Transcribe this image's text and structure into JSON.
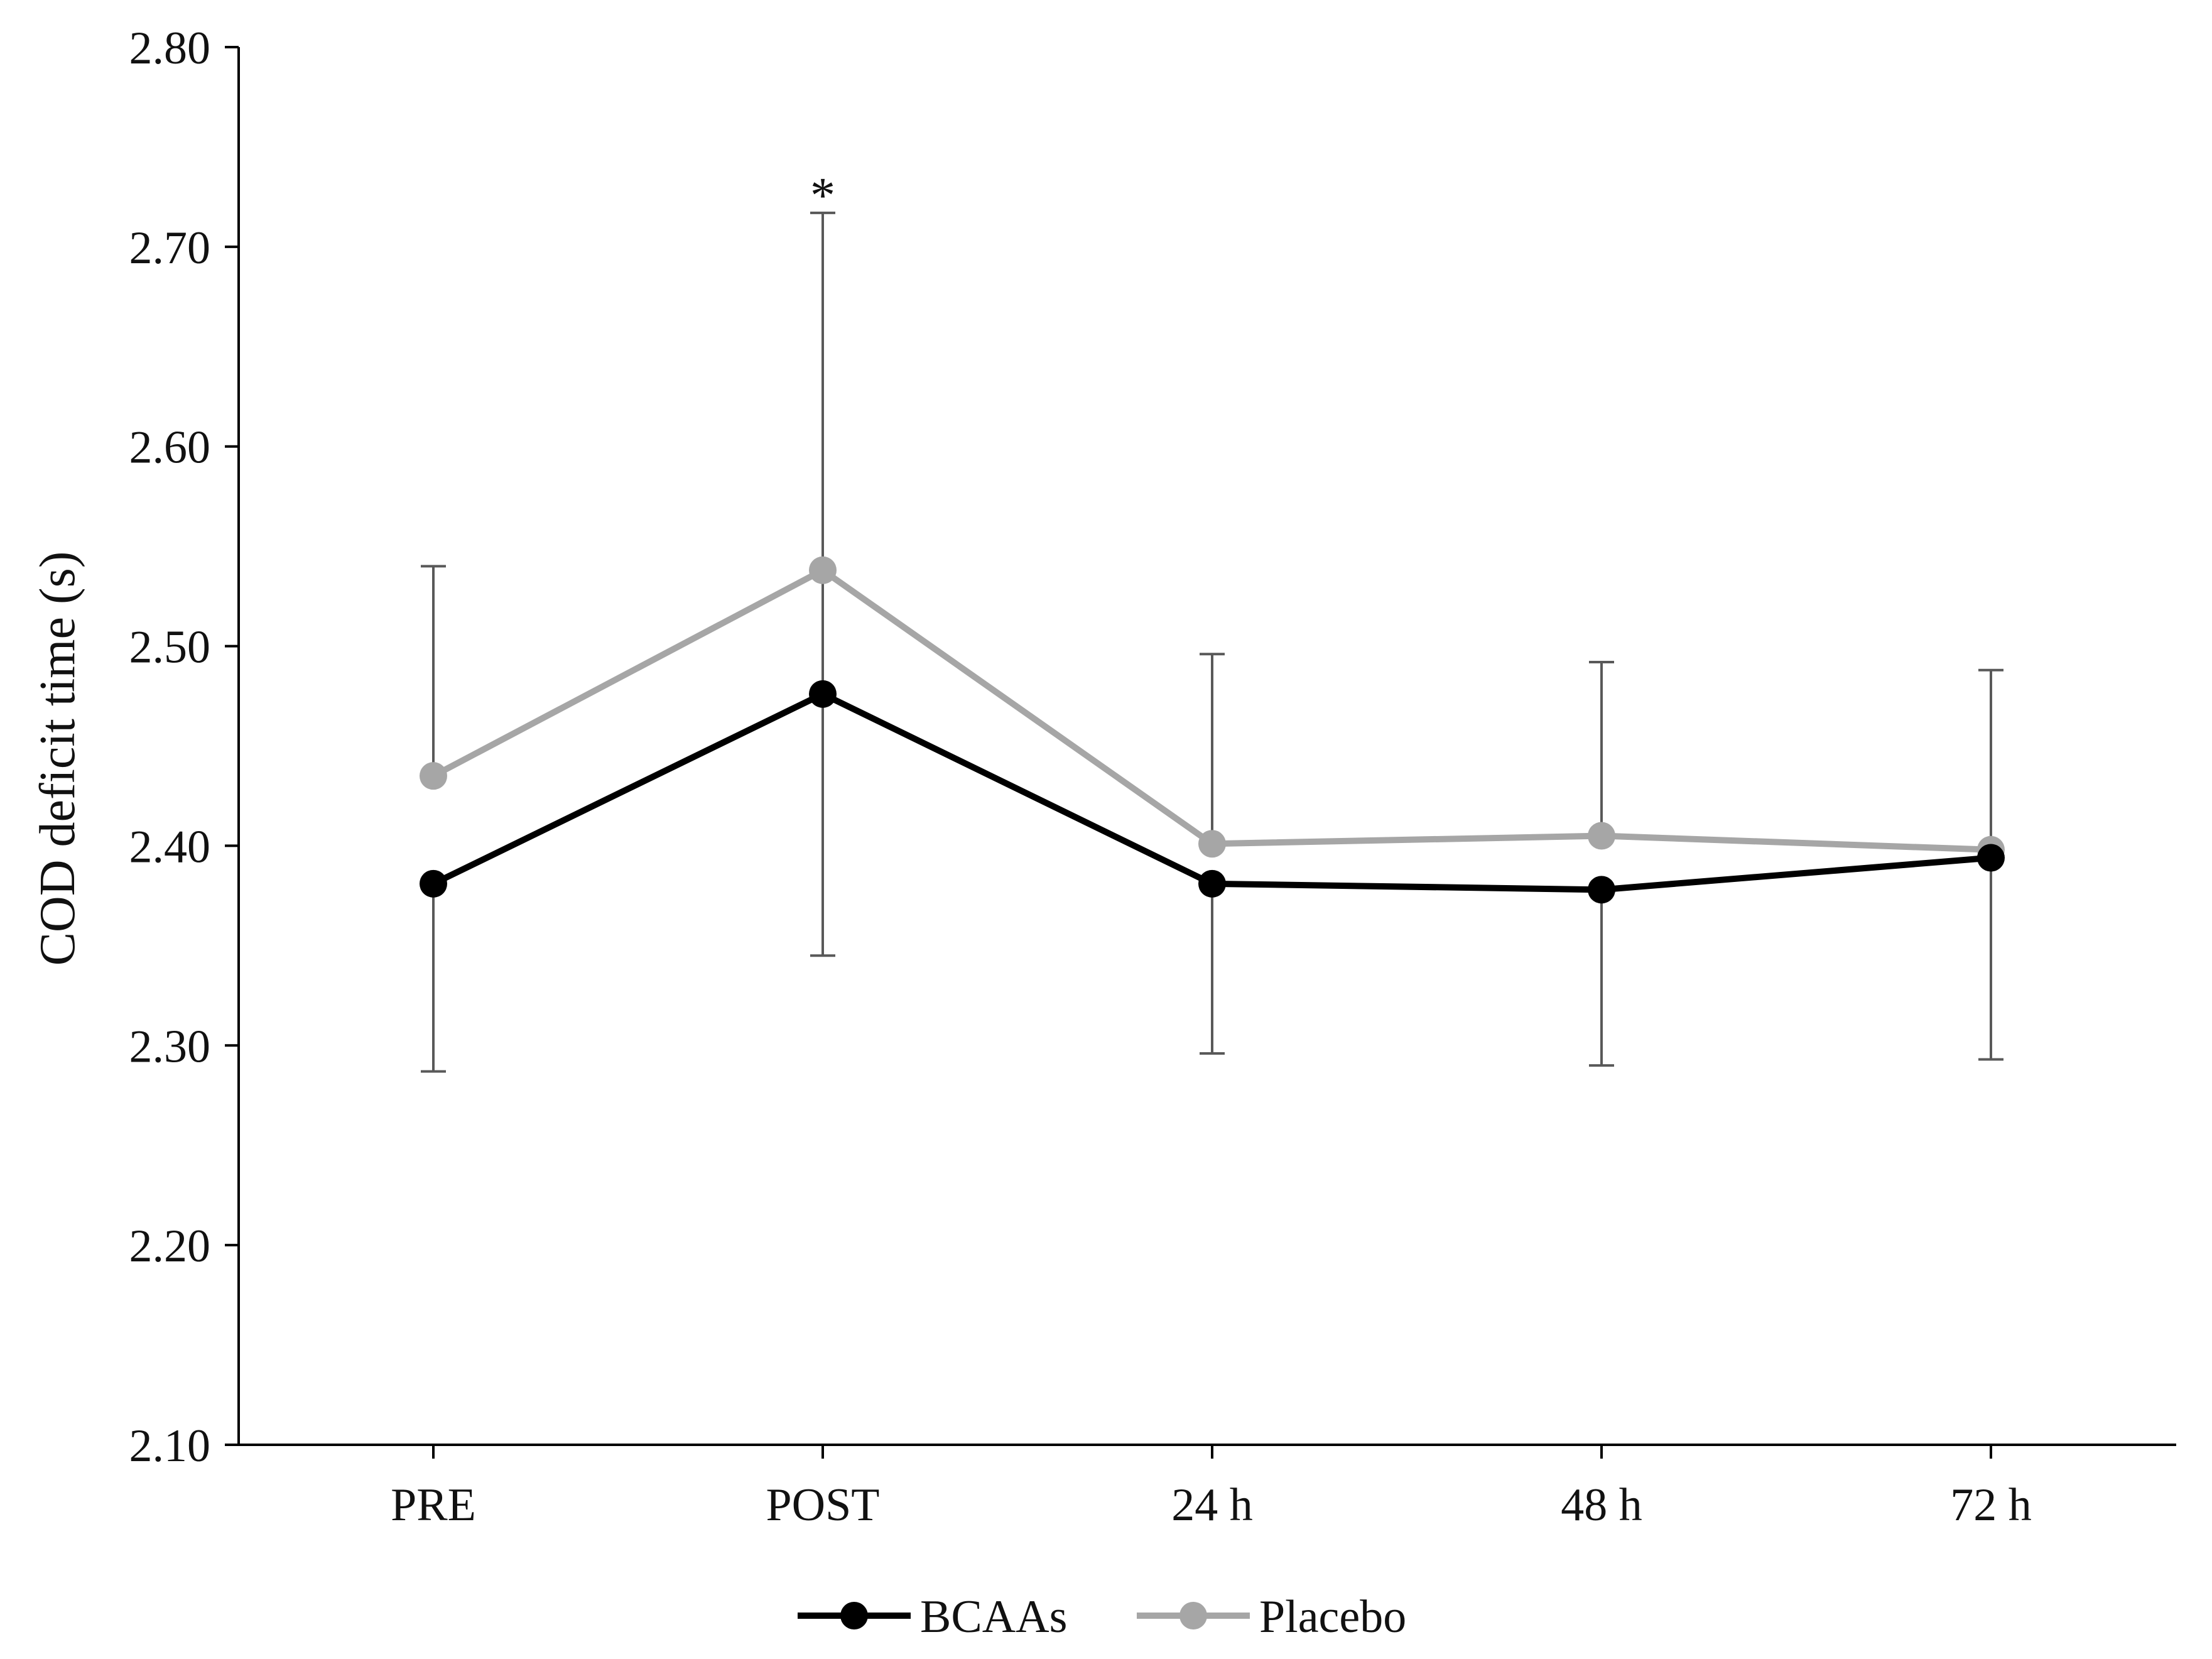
{
  "chart_data": {
    "type": "line",
    "title": "",
    "xlabel": "",
    "ylabel": "COD deficit time (s)",
    "categories": [
      "PRE",
      "POST",
      "24 h",
      "48 h",
      "72 h"
    ],
    "ylim": [
      2.1,
      2.8
    ],
    "yticks": [
      "2.10",
      "2.20",
      "2.30",
      "2.40",
      "2.50",
      "2.60",
      "2.70",
      "2.80"
    ],
    "yticks_values": [
      2.1,
      2.2,
      2.3,
      2.4,
      2.5,
      2.6,
      2.7,
      2.8
    ],
    "grid": false,
    "legend_position": "bottom-center",
    "series": [
      {
        "name": "BCAAs",
        "color": "#000000",
        "values": [
          2.381,
          2.476,
          2.381,
          2.378,
          2.394
        ],
        "error_low": [
          2.287,
          null,
          2.296,
          2.29,
          2.293
        ],
        "error_high": [
          null,
          null,
          null,
          null,
          null
        ]
      },
      {
        "name": "Placebo",
        "color": "#a6a6a6",
        "values": [
          2.435,
          2.538,
          2.401,
          2.405,
          2.398
        ],
        "error_low": [
          null,
          2.345,
          null,
          null,
          null
        ],
        "error_high": [
          2.54,
          2.717,
          2.496,
          2.492,
          2.488
        ]
      }
    ],
    "error_bar_color": "#595959",
    "annotations": [
      {
        "text": "*",
        "category": "POST",
        "y": 2.73
      }
    ]
  }
}
